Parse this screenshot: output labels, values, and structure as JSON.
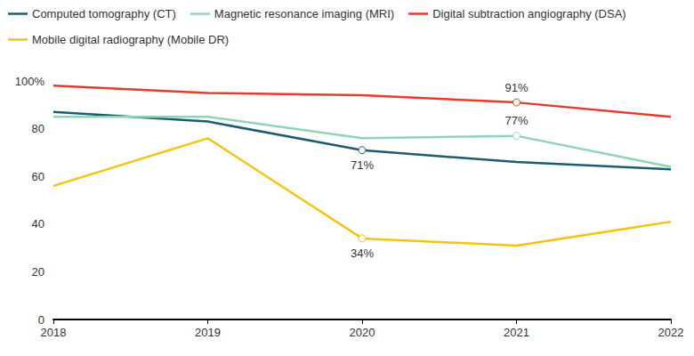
{
  "chart_data": {
    "type": "line",
    "categories": [
      "2018",
      "2019",
      "2020",
      "2021",
      "2022"
    ],
    "series": [
      {
        "name": "Computed tomography (CT)",
        "color": "#1b5c70",
        "values": [
          87,
          83,
          71,
          66,
          63
        ],
        "value_labels": [
          null,
          null,
          "71%",
          null,
          null
        ]
      },
      {
        "name": "Magnetic resonance imaging (MRI)",
        "color": "#8fd4b4",
        "values": [
          85,
          85,
          76,
          77,
          64
        ],
        "value_labels": [
          null,
          null,
          null,
          "77%",
          null
        ]
      },
      {
        "name": "Digital subtraction angiography (DSA)",
        "color": "#e63a2a",
        "values": [
          98,
          95,
          94,
          91,
          85
        ],
        "value_labels": [
          null,
          null,
          null,
          "91%",
          null
        ]
      },
      {
        "name": "Mobile digital radiography (Mobile DR)",
        "color": "#f4c20f",
        "values": [
          56,
          76,
          34,
          31,
          41
        ],
        "value_labels": [
          null,
          null,
          "34%",
          null,
          null
        ]
      }
    ],
    "ylim": [
      0,
      100
    ],
    "yticks": [
      0,
      20,
      40,
      60,
      80,
      {
        "value": 100,
        "label": "100%"
      }
    ],
    "grid": false,
    "legend": "top-left"
  }
}
